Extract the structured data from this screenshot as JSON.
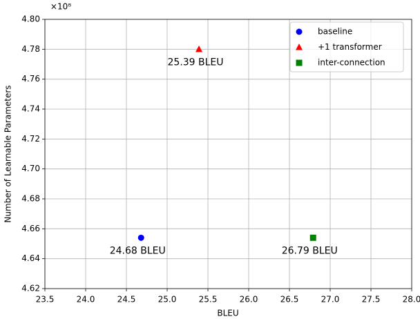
{
  "chart_data": {
    "type": "scatter",
    "x_label": "BLEU",
    "y_label": "Number of Learnable Parameters",
    "y_offset_label": "×10⁸",
    "xlim": [
      23.5,
      28.0
    ],
    "xticks": [
      23.5,
      {
        "value": 24.0,
        "label": "24.0"
      },
      24.5,
      {
        "value": 25.0,
        "label": "25.0"
      },
      25.5,
      {
        "value": 26.0,
        "label": "26.0"
      },
      26.5,
      {
        "value": 27.0,
        "label": "27.0"
      },
      27.5,
      {
        "value": 28.0,
        "label": "28.0"
      }
    ],
    "ylim": [
      4.62,
      4.8
    ],
    "yticks": [
      4.62,
      4.64,
      4.66,
      4.68,
      {
        "value": 4.7,
        "label": "4.70"
      },
      4.72,
      4.74,
      4.76,
      4.78,
      {
        "value": 4.8,
        "label": "4.80"
      }
    ],
    "grid": true,
    "legend": "upper right",
    "series": [
      {
        "name": "baseline",
        "color": "#0000ff",
        "marker": "circle",
        "x": [
          24.68
        ],
        "values": [
          4.654
        ],
        "labels": [
          "24.68 BLEU"
        ]
      },
      {
        "name": "+1 transformer",
        "color": "#ff0000",
        "marker": "triangle",
        "x": [
          25.39
        ],
        "values": [
          4.78
        ],
        "labels": [
          "25.39 BLEU"
        ]
      },
      {
        "name": "inter-connection",
        "color": "#008000",
        "marker": "square",
        "x": [
          26.79
        ],
        "values": [
          4.654
        ],
        "labels": [
          "26.79 BLEU"
        ]
      }
    ]
  }
}
